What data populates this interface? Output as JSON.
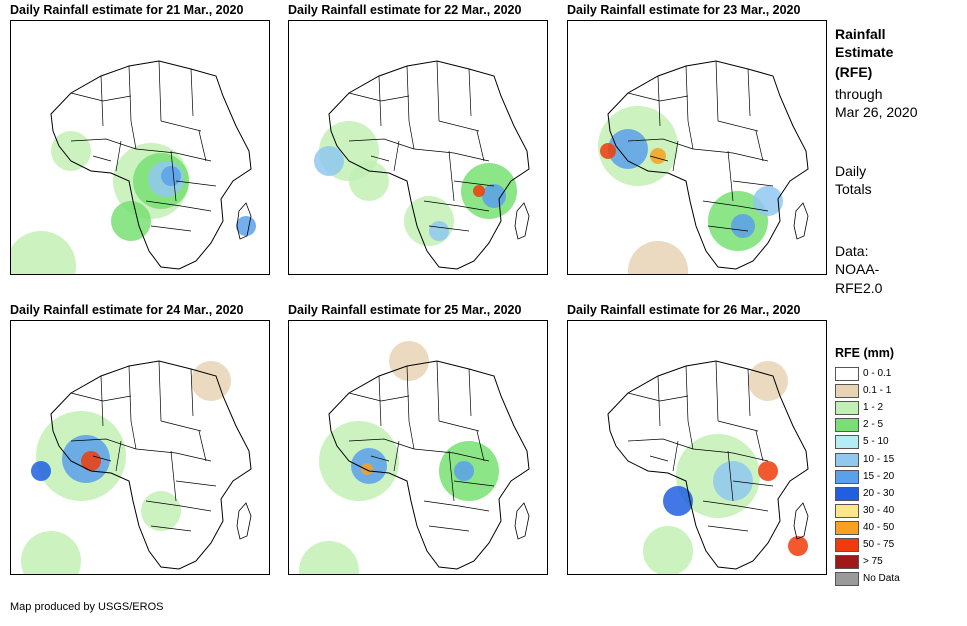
{
  "panels": [
    {
      "title": "Daily Rainfall estimate for 21 Mar., 2020"
    },
    {
      "title": "Daily Rainfall estimate for 22 Mar., 2020"
    },
    {
      "title": "Daily Rainfall estimate for 23 Mar., 2020"
    },
    {
      "title": "Daily Rainfall estimate for 24 Mar., 2020"
    },
    {
      "title": "Daily Rainfall estimate for 25 Mar., 2020"
    },
    {
      "title": "Daily Rainfall estimate for 26 Mar., 2020"
    }
  ],
  "side_info": {
    "title_line1": "Rainfall",
    "title_line2": "Estimate",
    "title_line3": "(RFE)",
    "through_line1": "through",
    "through_line2": "Mar 26, 2020",
    "daily_line1": "Daily",
    "daily_line2": "Totals",
    "data_line1": "Data:",
    "data_line2": "NOAA-",
    "data_line3": "RFE2.0"
  },
  "legend": {
    "title": "RFE (mm)",
    "items": [
      {
        "label": "0 - 0.1",
        "color": "#ffffff"
      },
      {
        "label": "0.1 - 1",
        "color": "#e8d4b4"
      },
      {
        "label": "1 - 2",
        "color": "#c2f0b4"
      },
      {
        "label": "2 - 5",
        "color": "#78e072"
      },
      {
        "label": "5 - 10",
        "color": "#b4eef4"
      },
      {
        "label": "10 - 15",
        "color": "#90c8f0"
      },
      {
        "label": "15 - 20",
        "color": "#5aa0ea"
      },
      {
        "label": "20 - 30",
        "color": "#2060e0"
      },
      {
        "label": "30 - 40",
        "color": "#fae68c"
      },
      {
        "label": "40 - 50",
        "color": "#f8a020"
      },
      {
        "label": "50 - 75",
        "color": "#f03c0a"
      },
      {
        "label": "> 75",
        "color": "#a01818"
      },
      {
        "label": "No Data",
        "color": "#9a9a9a"
      }
    ]
  },
  "credit": "Map produced by USGS/EROS"
}
